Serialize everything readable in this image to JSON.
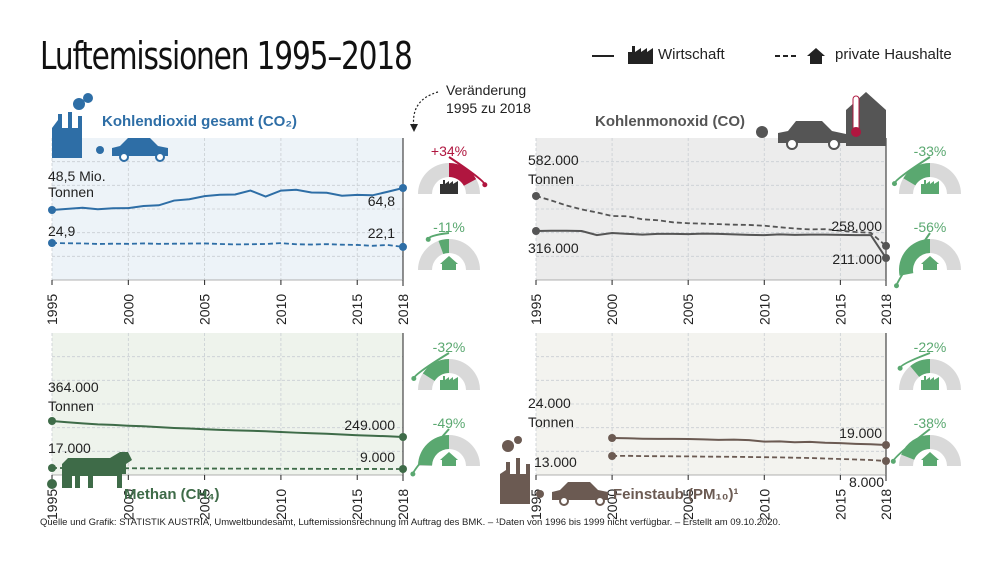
{
  "title": "Luftemissionen 1995–2018",
  "legend": {
    "economy_label": "Wirtschaft",
    "households_label": "private Haushalte"
  },
  "change_note": [
    "Veränderung",
    "1995 zu 2018"
  ],
  "footer": "Quelle und Grafik: STATISTIK AUSTRIA, Umweltbundesamt, Luftemissionsrechnung im Auftrag des BMK. – ¹Daten von 1996 bis 1999 nicht verfügbar. – Erstellt am 09.10.2020.",
  "colors": {
    "co2": "#2e6ea6",
    "co": "#555555",
    "methane": "#3e6b48",
    "pm": "#6b5a52",
    "increase": "#b0163f",
    "decrease": "#5aa870",
    "gauge_bg": "#d9d9d9"
  },
  "x_ticks": [
    "1995",
    "2000",
    "2005",
    "2010",
    "2015",
    "2018"
  ],
  "chart_data": [
    {
      "type": "line",
      "title": "Kohlendioxid gesamt (CO₂)",
      "icon": "factory-car-icon",
      "x": [
        1995,
        1996,
        1997,
        1998,
        1999,
        2000,
        2001,
        2002,
        2003,
        2004,
        2005,
        2006,
        2007,
        2008,
        2009,
        2010,
        2011,
        2012,
        2013,
        2014,
        2015,
        2016,
        2017,
        2018
      ],
      "series": [
        {
          "name": "Wirtschaft",
          "values": [
            48.5,
            49.3,
            50.2,
            49.1,
            49.8,
            49.9,
            51.5,
            52.0,
            55.5,
            56.5,
            58.8,
            59.8,
            60.0,
            62.9,
            58.5,
            62.9,
            63.5,
            61.5,
            61.3,
            59.1,
            59.7,
            59.4,
            62.0,
            64.8
          ]
        },
        {
          "name": "private Haushalte",
          "values": [
            24.9,
            24.7,
            24.6,
            24.2,
            24.4,
            24.3,
            24.6,
            24.3,
            24.4,
            24.5,
            24.6,
            24.2,
            23.9,
            24.0,
            24.2,
            24.8,
            24.0,
            23.8,
            24.1,
            23.7,
            23.5,
            22.9,
            23.5,
            22.1
          ]
        }
      ],
      "labels": {
        "first_top": [
          "48,5 Mio.",
          "Tonnen"
        ],
        "last_top": "64,8",
        "first_bottom": "24,9",
        "last_bottom": "22,1"
      },
      "changes": {
        "economy": "+34%",
        "households": "-11%"
      }
    },
    {
      "type": "line",
      "title": "Kohlenmonoxid (CO)",
      "icon": "car-house-icon",
      "x": [
        1995,
        1996,
        1997,
        1998,
        1999,
        2000,
        2001,
        2002,
        2003,
        2004,
        2005,
        2006,
        2007,
        2008,
        2009,
        2010,
        2011,
        2012,
        2013,
        2014,
        2015,
        2016,
        2017,
        2018
      ],
      "series": [
        {
          "name": "Wirtschaft",
          "values": [
            316000,
            318000,
            318000,
            316000,
            300000,
            308000,
            305000,
            302000,
            305000,
            305000,
            304000,
            306000,
            305000,
            303000,
            301000,
            300000,
            303000,
            301000,
            302000,
            302000,
            301000,
            300000,
            300000,
            211000
          ]
        },
        {
          "name": "private Haushalte",
          "values": [
            582000,
            548000,
            510000,
            480000,
            457000,
            430000,
            428000,
            405000,
            398000,
            382000,
            375000,
            372000,
            368000,
            364000,
            362000,
            356000,
            345000,
            335000,
            328000,
            330000,
            318000,
            312000,
            309000,
            258000
          ]
        }
      ],
      "labels": {
        "first_top": [
          "582.000",
          "Tonnen"
        ],
        "last_top": "258.000",
        "first_bottom": "316.000",
        "last_bottom": "211.000"
      },
      "changes": {
        "economy": "-33%",
        "households": "-56%"
      }
    },
    {
      "type": "line",
      "title": "Methan (CH₄)",
      "icon": "cow-icon",
      "x": [
        1995,
        1996,
        1997,
        1998,
        1999,
        2000,
        2001,
        2002,
        2003,
        2004,
        2005,
        2006,
        2007,
        2008,
        2009,
        2010,
        2011,
        2012,
        2013,
        2014,
        2015,
        2016,
        2017,
        2018
      ],
      "series": [
        {
          "name": "Wirtschaft",
          "values": [
            364000,
            355000,
            347000,
            340000,
            336000,
            330000,
            326000,
            320000,
            314000,
            310000,
            305000,
            300000,
            297000,
            294000,
            290000,
            285000,
            280000,
            276000,
            272000,
            267000,
            262000,
            258000,
            254000,
            249000
          ]
        },
        {
          "name": "private Haushalte",
          "values": [
            17000,
            16500,
            16000,
            15700,
            15300,
            14800,
            14400,
            14000,
            13600,
            13200,
            12800,
            12400,
            12000,
            11700,
            11400,
            11000,
            10700,
            10400,
            10100,
            9900,
            9600,
            9400,
            9200,
            9000
          ]
        }
      ],
      "labels": {
        "first_top": [
          "364.000",
          "Tonnen"
        ],
        "last_top": "249.000",
        "first_bottom": "17.000",
        "last_bottom": "9.000"
      },
      "changes": {
        "economy": "-32%",
        "households": "-49%"
      }
    },
    {
      "type": "line",
      "title": "Feinstaub (PM₁₀)¹",
      "icon": "factory-car-icon",
      "x": [
        2000,
        2001,
        2002,
        2003,
        2004,
        2005,
        2006,
        2007,
        2008,
        2009,
        2010,
        2011,
        2012,
        2013,
        2014,
        2015,
        2016,
        2017,
        2018
      ],
      "series": [
        {
          "name": "Wirtschaft",
          "values": [
            24000,
            23800,
            23500,
            23400,
            23400,
            23300,
            23000,
            22700,
            22800,
            22500,
            21400,
            21600,
            21000,
            21200,
            20600,
            20300,
            19800,
            19500,
            19000
          ]
        },
        {
          "name": "private Haushalte",
          "values": [
            13000,
            13100,
            12900,
            12800,
            12700,
            12600,
            12400,
            12300,
            12200,
            12000,
            11800,
            11600,
            11300,
            11000,
            10500,
            10000,
            9500,
            9000,
            8000
          ]
        }
      ],
      "labels": {
        "first_top": [
          "24.000",
          "Tonnen"
        ],
        "last_top": "19.000",
        "first_bottom": "13.000",
        "last_bottom": "8.000"
      },
      "changes": {
        "economy": "-22%",
        "households": "-38%"
      }
    }
  ]
}
